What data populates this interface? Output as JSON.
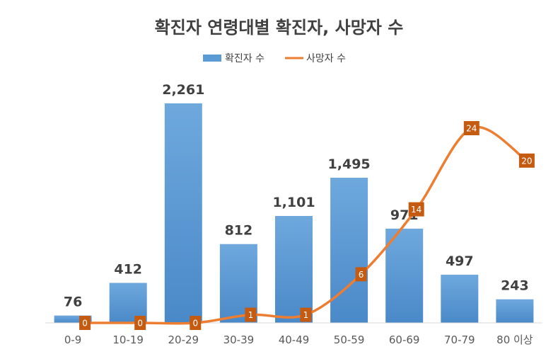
{
  "chart_data": {
    "type": "bar",
    "title": "확진자 연령대별 확진자, 사망자 수",
    "categories": [
      "0-9",
      "10-19",
      "20-29",
      "30-39",
      "40-49",
      "50-59",
      "60-69",
      "70-79",
      "80 이상"
    ],
    "series": [
      {
        "name": "확진자 수",
        "type": "bar",
        "values": [
          76,
          412,
          2261,
          812,
          1101,
          1495,
          971,
          497,
          243
        ],
        "labels": [
          "76",
          "412",
          "2,261",
          "812",
          "1,101",
          "1,495",
          "971",
          "497",
          "243"
        ]
      },
      {
        "name": "사망자 수",
        "type": "line",
        "values": [
          0,
          0,
          0,
          1,
          1,
          6,
          14,
          24,
          20
        ],
        "labels": [
          "0",
          "0",
          "0",
          "1",
          "1",
          "6",
          "14",
          "24",
          "20"
        ]
      }
    ],
    "ylim_primary": [
      0,
      2261
    ],
    "ylim_secondary": [
      0,
      24
    ],
    "legend_position": "top-center",
    "grid": false,
    "colors": {
      "bars": "#5B9BD5",
      "bars_light": "#6EA8DD",
      "bars_dark": "#4A89C8",
      "line": "#ED7D31",
      "line_marker": "#C55A11",
      "axis": "#D9D9D9"
    }
  }
}
